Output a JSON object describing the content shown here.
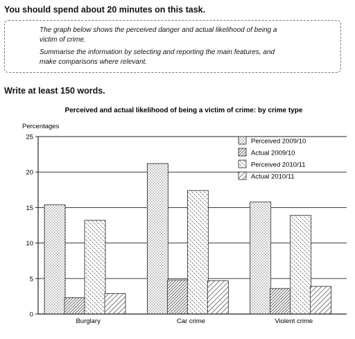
{
  "header": {
    "intro": "You should spend about 20 minutes on this task.",
    "task_line1": "The graph below shows the perceived danger and actual likelihood of being a",
    "task_line2": "victim of crime.",
    "task_line3": "Summarise the information by selecting and reporting the main features, and",
    "task_line4": "make comparisons where relevant.",
    "word_count": "Write at least 150 words."
  },
  "chart_data": {
    "type": "bar",
    "title": "Perceived and actual likelihood of being a victim of crime: by crime type",
    "ylabel": "Percentages",
    "xlabel": "",
    "ylim": [
      0,
      25
    ],
    "yticks": [
      0,
      5,
      10,
      15,
      20,
      25
    ],
    "grid": true,
    "legend_position": "top-right",
    "categories": [
      "Burglary",
      "Car crime",
      "Violent crime"
    ],
    "series": [
      {
        "name": "Perceived 2009/10",
        "values": [
          15.4,
          21.2,
          15.8
        ],
        "pattern": "dots"
      },
      {
        "name": "Actual 2009/10",
        "values": [
          2.3,
          4.8,
          3.6
        ],
        "pattern": "hatch-dense"
      },
      {
        "name": "Perceived 2010/11",
        "values": [
          13.2,
          17.4,
          13.9
        ],
        "pattern": "dashes"
      },
      {
        "name": "Actual 2010/11",
        "values": [
          2.9,
          4.7,
          3.9
        ],
        "pattern": "hatch-sparse"
      }
    ]
  }
}
